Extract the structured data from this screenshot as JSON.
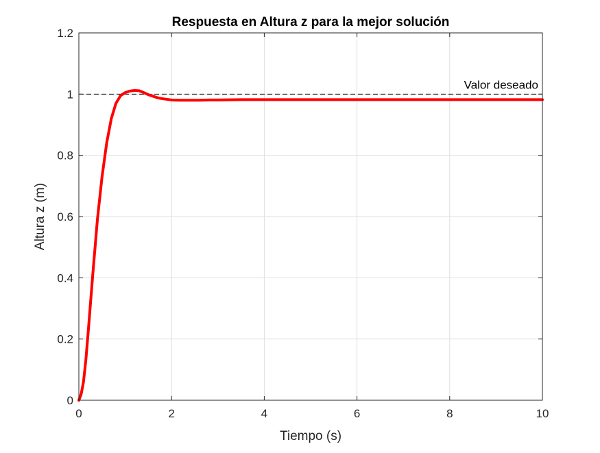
{
  "chart_data": {
    "type": "line",
    "title": "Respuesta en Altura z para la mejor solución",
    "xlabel": "Tiempo (s)",
    "ylabel": "Altura z (m)",
    "xlim": [
      0,
      10
    ],
    "ylim": [
      0,
      1.2
    ],
    "xticks": [
      0,
      2,
      4,
      6,
      8,
      10
    ],
    "xtick_labels": [
      "0",
      "2",
      "4",
      "6",
      "8",
      "10"
    ],
    "yticks": [
      0,
      0.2,
      0.4,
      0.6,
      0.8,
      1,
      1.2
    ],
    "ytick_labels": [
      "0",
      "0.2",
      "0.4",
      "0.6",
      "0.8",
      "1",
      "1.2"
    ],
    "grid": true,
    "series": [
      {
        "color": "#ff0000",
        "x": [
          0,
          0.05,
          0.1,
          0.15,
          0.2,
          0.3,
          0.4,
          0.5,
          0.6,
          0.7,
          0.8,
          0.9,
          1.0,
          1.1,
          1.2,
          1.3,
          1.4,
          1.5,
          1.6,
          1.7,
          1.8,
          1.9,
          2.0,
          2.2,
          2.4,
          2.6,
          2.8,
          3.0,
          3.5,
          4.0,
          5.0,
          6.0,
          7.0,
          8.0,
          9.0,
          10.0
        ],
        "y": [
          0,
          0.02,
          0.06,
          0.13,
          0.22,
          0.41,
          0.59,
          0.73,
          0.84,
          0.92,
          0.97,
          0.995,
          1.005,
          1.01,
          1.012,
          1.011,
          1.005,
          0.998,
          0.993,
          0.988,
          0.985,
          0.983,
          0.981,
          0.98,
          0.98,
          0.98,
          0.981,
          0.981,
          0.982,
          0.982,
          0.982,
          0.982,
          0.982,
          0.982,
          0.982,
          0.982
        ]
      }
    ],
    "reference_line": {
      "y": 1,
      "color": "#000000",
      "style": "dashed",
      "label": "Valor deseado"
    }
  }
}
